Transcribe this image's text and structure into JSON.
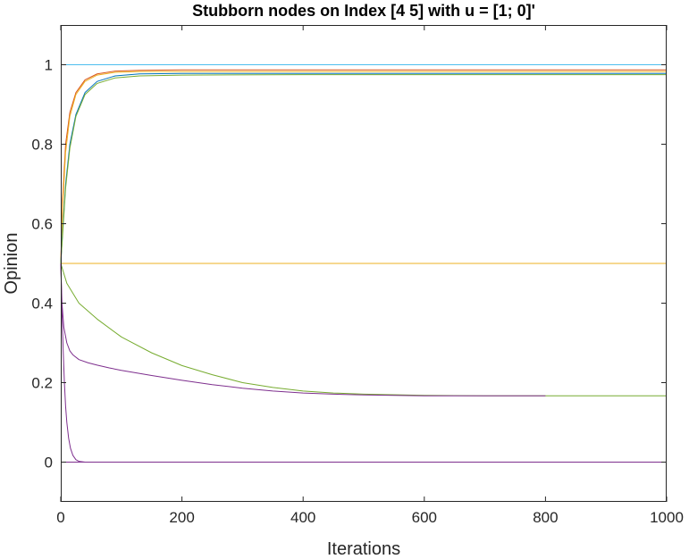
{
  "chart_data": {
    "type": "line",
    "title": "Stubborn nodes on Index [4 5] with u = [1; 0]'",
    "xlabel": "Iterations",
    "ylabel": "Opinion",
    "xlim": [
      0,
      1000
    ],
    "ylim": [
      -0.1,
      1.1
    ],
    "xticks": [
      0,
      200,
      400,
      600,
      800,
      1000
    ],
    "xtick_labels": [
      "0",
      "200",
      "400",
      "600",
      "800",
      "1000"
    ],
    "yticks": [
      0,
      0.2,
      0.4,
      0.6,
      0.8,
      1
    ],
    "ytick_labels": [
      "0",
      "0.2",
      "0.4",
      "0.6",
      "0.8",
      "1"
    ],
    "grid": false,
    "legend": false,
    "series": [
      {
        "color": "#4DBEEE",
        "x": [
          0,
          1000
        ],
        "y": [
          1,
          1
        ]
      },
      {
        "color": "#D95319",
        "x": [
          0,
          3,
          8,
          15,
          25,
          40,
          60,
          90,
          130,
          200,
          400,
          1000
        ],
        "y": [
          0.5,
          0.66,
          0.8,
          0.88,
          0.93,
          0.962,
          0.977,
          0.984,
          0.986,
          0.987,
          0.987,
          0.987
        ]
      },
      {
        "color": "#EDB120",
        "x": [
          0,
          3,
          8,
          15,
          25,
          40,
          60,
          90,
          130,
          200,
          400,
          1000
        ],
        "y": [
          0.5,
          0.64,
          0.78,
          0.87,
          0.925,
          0.958,
          0.974,
          0.981,
          0.983,
          0.983,
          0.983,
          0.983
        ]
      },
      {
        "color": "#0072BD",
        "x": [
          0,
          3,
          8,
          15,
          25,
          40,
          60,
          90,
          130,
          200,
          400,
          1000
        ],
        "y": [
          0.5,
          0.58,
          0.7,
          0.8,
          0.875,
          0.93,
          0.958,
          0.972,
          0.977,
          0.978,
          0.978,
          0.978
        ]
      },
      {
        "color": "#77AC30",
        "x": [
          0,
          3,
          8,
          15,
          25,
          40,
          60,
          90,
          130,
          200,
          400,
          1000
        ],
        "y": [
          0.5,
          0.57,
          0.69,
          0.79,
          0.87,
          0.925,
          0.953,
          0.967,
          0.972,
          0.974,
          0.975,
          0.975
        ]
      },
      {
        "color": "#EDB120",
        "x": [
          0,
          1000
        ],
        "y": [
          0.5,
          0.5
        ]
      },
      {
        "color": "#77AC30",
        "x": [
          0,
          10,
          30,
          60,
          100,
          150,
          200,
          250,
          300,
          350,
          400,
          450,
          500,
          600,
          700,
          800,
          1000
        ],
        "y": [
          0.5,
          0.45,
          0.4,
          0.36,
          0.315,
          0.275,
          0.243,
          0.22,
          0.2,
          0.188,
          0.179,
          0.174,
          0.171,
          0.168,
          0.167,
          0.167,
          0.167
        ]
      },
      {
        "color": "#7E2F8E",
        "x": [
          0,
          2,
          5,
          10,
          15,
          20,
          30,
          45,
          60,
          80,
          100,
          150,
          200,
          250,
          300,
          350,
          400,
          450,
          500,
          600,
          700,
          800
        ],
        "y": [
          0.5,
          0.4,
          0.34,
          0.3,
          0.28,
          0.27,
          0.258,
          0.25,
          0.244,
          0.237,
          0.231,
          0.218,
          0.206,
          0.195,
          0.186,
          0.179,
          0.174,
          0.171,
          0.169,
          0.167,
          0.167,
          0.167
        ]
      },
      {
        "color": "#7E2F8E",
        "x": [
          0,
          1,
          2,
          4,
          6,
          8,
          10,
          13,
          16,
          20,
          25,
          30,
          40,
          1000
        ],
        "y": [
          0.5,
          0.44,
          0.38,
          0.28,
          0.2,
          0.14,
          0.1,
          0.06,
          0.035,
          0.017,
          0.006,
          0.002,
          0,
          0
        ]
      },
      {
        "color": "#7E2F8E",
        "x": [
          0,
          1000
        ],
        "y": [
          0,
          0
        ]
      }
    ]
  }
}
